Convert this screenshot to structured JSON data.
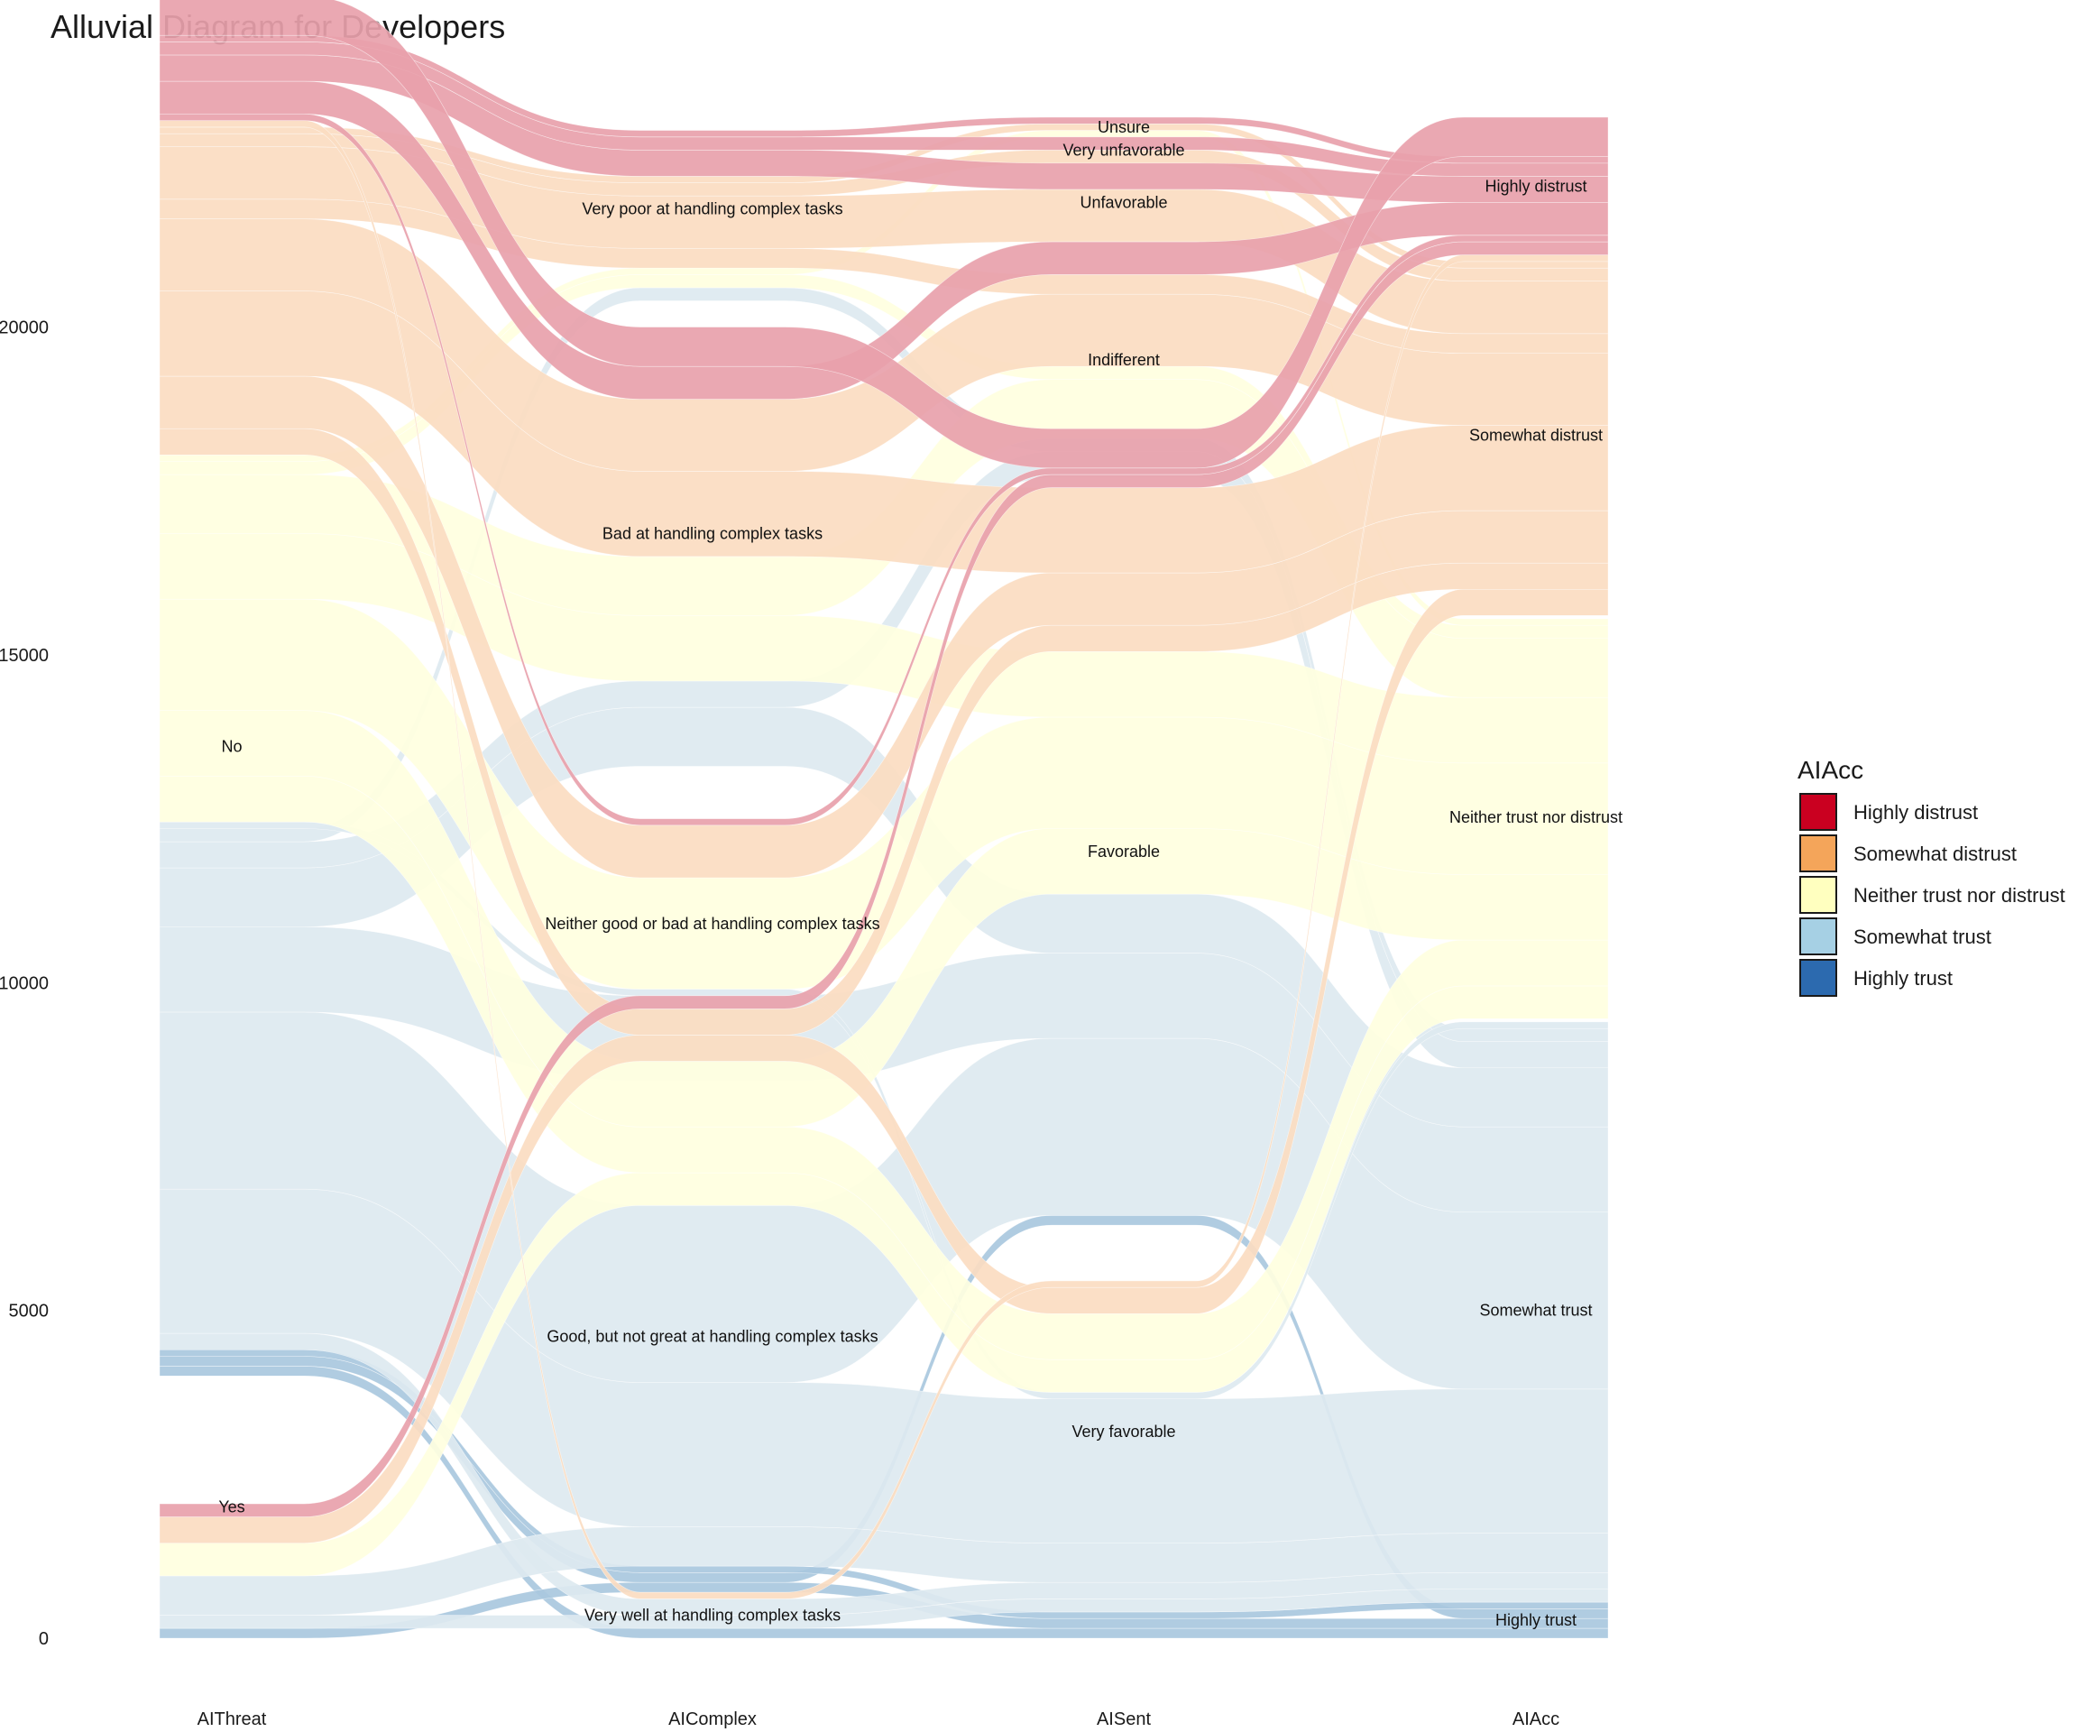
{
  "chart_data": {
    "type": "alluvial",
    "title": "Alluvial Diagram for Developers",
    "axes": [
      "AIThreat",
      "AIComplex",
      "AISent",
      "AIAcc"
    ],
    "y_ticks": [
      0,
      5000,
      10000,
      15000,
      20000
    ],
    "ylim": [
      0,
      23200
    ],
    "grid": false,
    "legend": {
      "title": "AIAcc",
      "placement": "right",
      "items": [
        {
          "label": "Highly distrust",
          "color": "#ca0020"
        },
        {
          "label": "Somewhat distrust",
          "color": "#f4a55a"
        },
        {
          "label": "Neither trust nor distrust",
          "color": "#ffffbf"
        },
        {
          "label": "Somewhat trust",
          "color": "#a6d0e4"
        },
        {
          "label": "Highly trust",
          "color": "#2c6aaf"
        }
      ]
    },
    "strata": [
      {
        "axis": 0,
        "label": "Yes",
        "from": 0,
        "to": 4000
      },
      {
        "axis": 0,
        "label": "No",
        "from": 4000,
        "to": 23200
      },
      {
        "axis": 1,
        "label": "Very well at handling complex tasks",
        "from": 0,
        "to": 700
      },
      {
        "axis": 1,
        "label": "Good, but not great at handling complex tasks",
        "from": 700,
        "to": 8500
      },
      {
        "axis": 1,
        "label": "Neither good or bad at handling complex tasks",
        "from": 8500,
        "to": 13300
      },
      {
        "axis": 1,
        "label": "Bad at handling complex tasks",
        "from": 13300,
        "to": 20400
      },
      {
        "axis": 1,
        "label": "Very poor at handling complex tasks",
        "from": 20400,
        "to": 23200
      },
      {
        "axis": 2,
        "label": "Very favorable",
        "from": 0,
        "to": 6300
      },
      {
        "axis": 2,
        "label": "Favorable",
        "from": 6300,
        "to": 17700
      },
      {
        "axis": 2,
        "label": "Indifferent",
        "from": 17700,
        "to": 21300
      },
      {
        "axis": 2,
        "label": "Unfavorable",
        "from": 21300,
        "to": 22500
      },
      {
        "axis": 2,
        "label": "Very unfavorable",
        "from": 22500,
        "to": 22900
      },
      {
        "axis": 2,
        "label": "Unsure",
        "from": 22900,
        "to": 23200
      },
      {
        "axis": 3,
        "label": "Highly trust",
        "from": 0,
        "to": 550
      },
      {
        "axis": 3,
        "label": "Somewhat trust",
        "from": 550,
        "to": 9450
      },
      {
        "axis": 3,
        "label": "Neither trust nor distrust",
        "from": 9450,
        "to": 15600
      },
      {
        "axis": 3,
        "label": "Somewhat distrust",
        "from": 15600,
        "to": 21100
      },
      {
        "axis": 3,
        "label": "Highly distrust",
        "from": 21100,
        "to": 23200
      }
    ],
    "flow_colors": {
      "Highly distrust": "#e8a1ab",
      "Somewhat distrust": "#fbdcc1",
      "Neither trust nor distrust": "#ffffdf",
      "Somewhat trust": "#dde9f0",
      "Highly trust": "#a9c8de"
    },
    "flows": [
      {
        "acc": "Highly trust",
        "path": [
          "No",
          "Very well at handling complex tasks",
          "Very favorable",
          "Highly trust"
        ],
        "value": 150
      },
      {
        "acc": "Highly trust",
        "path": [
          "Yes",
          "Good, but not great at handling complex tasks",
          "Very favorable",
          "Highly trust"
        ],
        "value": 150
      },
      {
        "acc": "Highly trust",
        "path": [
          "No",
          "Good, but not great at handling complex tasks",
          "Favorable",
          "Highly trust"
        ],
        "value": 150
      },
      {
        "acc": "Highly trust",
        "path": [
          "No",
          "Good, but not great at handling complex tasks",
          "Very favorable",
          "Highly trust"
        ],
        "value": 100
      },
      {
        "acc": "Somewhat trust",
        "path": [
          "Yes",
          "Very well at handling complex tasks",
          "Very favorable",
          "Somewhat trust"
        ],
        "value": 200
      },
      {
        "acc": "Somewhat trust",
        "path": [
          "No",
          "Very well at handling complex tasks",
          "Very favorable",
          "Somewhat trust"
        ],
        "value": 250
      },
      {
        "acc": "Somewhat trust",
        "path": [
          "Yes",
          "Good, but not great at handling complex tasks",
          "Very favorable",
          "Somewhat trust"
        ],
        "value": 600
      },
      {
        "acc": "Somewhat trust",
        "path": [
          "No",
          "Good, but not great at handling complex tasks",
          "Very favorable",
          "Somewhat trust"
        ],
        "value": 2200
      },
      {
        "acc": "Somewhat trust",
        "path": [
          "No",
          "Good, but not great at handling complex tasks",
          "Favorable",
          "Somewhat trust"
        ],
        "value": 2700
      },
      {
        "acc": "Somewhat trust",
        "path": [
          "No",
          "Neither good or bad at handling complex tasks",
          "Favorable",
          "Somewhat trust"
        ],
        "value": 1300
      },
      {
        "acc": "Somewhat trust",
        "path": [
          "No",
          "Bad at handling complex tasks",
          "Favorable",
          "Somewhat trust"
        ],
        "value": 900
      },
      {
        "acc": "Somewhat trust",
        "path": [
          "No",
          "Bad at handling complex tasks",
          "Indifferent",
          "Somewhat trust"
        ],
        "value": 400
      },
      {
        "acc": "Somewhat trust",
        "path": [
          "No",
          "Very poor at handling complex tasks",
          "Indifferent",
          "Somewhat trust"
        ],
        "value": 200
      },
      {
        "acc": "Somewhat trust",
        "path": [
          "No",
          "Neither good or bad at handling complex tasks",
          "Very favorable",
          "Somewhat trust"
        ],
        "value": 100
      },
      {
        "acc": "Neither trust nor distrust",
        "path": [
          "Yes",
          "Good, but not great at handling complex tasks",
          "Very favorable",
          "Neither trust nor distrust"
        ],
        "value": 500
      },
      {
        "acc": "Neither trust nor distrust",
        "path": [
          "No",
          "Good, but not great at handling complex tasks",
          "Very favorable",
          "Neither trust nor distrust"
        ],
        "value": 700
      },
      {
        "acc": "Neither trust nor distrust",
        "path": [
          "No",
          "Good, but not great at handling complex tasks",
          "Favorable",
          "Neither trust nor distrust"
        ],
        "value": 1000
      },
      {
        "acc": "Neither trust nor distrust",
        "path": [
          "No",
          "Neither good or bad at handling complex tasks",
          "Favorable",
          "Neither trust nor distrust"
        ],
        "value": 1700
      },
      {
        "acc": "Neither trust nor distrust",
        "path": [
          "No",
          "Bad at handling complex tasks",
          "Favorable",
          "Neither trust nor distrust"
        ],
        "value": 1000
      },
      {
        "acc": "Neither trust nor distrust",
        "path": [
          "No",
          "Bad at handling complex tasks",
          "Indifferent",
          "Neither trust nor distrust"
        ],
        "value": 900
      },
      {
        "acc": "Neither trust nor distrust",
        "path": [
          "No",
          "Very poor at handling complex tasks",
          "Indifferent",
          "Neither trust nor distrust"
        ],
        "value": 200
      },
      {
        "acc": "Neither trust nor distrust",
        "path": [
          "No",
          "Very poor at handling complex tasks",
          "Unsure",
          "Neither trust nor distrust"
        ],
        "value": 100
      },
      {
        "acc": "Somewhat distrust",
        "path": [
          "Yes",
          "Good, but not great at handling complex tasks",
          "Very favorable",
          "Somewhat distrust"
        ],
        "value": 400
      },
      {
        "acc": "Somewhat distrust",
        "path": [
          "No",
          "Good, but not great at handling complex tasks",
          "Favorable",
          "Somewhat distrust"
        ],
        "value": 400
      },
      {
        "acc": "Somewhat distrust",
        "path": [
          "No",
          "Neither good or bad at handling complex tasks",
          "Favorable",
          "Somewhat distrust"
        ],
        "value": 800
      },
      {
        "acc": "Somewhat distrust",
        "path": [
          "No",
          "Bad at handling complex tasks",
          "Favorable",
          "Somewhat distrust"
        ],
        "value": 1300
      },
      {
        "acc": "Somewhat distrust",
        "path": [
          "No",
          "Bad at handling complex tasks",
          "Indifferent",
          "Somewhat distrust"
        ],
        "value": 1100
      },
      {
        "acc": "Somewhat distrust",
        "path": [
          "No",
          "Very poor at handling complex tasks",
          "Indifferent",
          "Somewhat distrust"
        ],
        "value": 300
      },
      {
        "acc": "Somewhat distrust",
        "path": [
          "No",
          "Very poor at handling complex tasks",
          "Unfavorable",
          "Somewhat distrust"
        ],
        "value": 800
      },
      {
        "acc": "Somewhat distrust",
        "path": [
          "No",
          "Very poor at handling complex tasks",
          "Very unfavorable",
          "Somewhat distrust"
        ],
        "value": 200
      },
      {
        "acc": "Somewhat distrust",
        "path": [
          "No",
          "Very poor at handling complex tasks",
          "Unsure",
          "Somewhat distrust"
        ],
        "value": 100
      },
      {
        "acc": "Somewhat distrust",
        "path": [
          "No",
          "Very well at handling complex tasks",
          "Very favorable",
          "Somewhat distrust"
        ],
        "value": 100
      },
      {
        "acc": "Highly distrust",
        "path": [
          "Yes",
          "Good, but not great at handling complex tasks",
          "Favorable",
          "Highly distrust"
        ],
        "value": 200
      },
      {
        "acc": "Highly distrust",
        "path": [
          "No",
          "Neither good or bad at handling complex tasks",
          "Favorable",
          "Highly distrust"
        ],
        "value": 100
      },
      {
        "acc": "Highly distrust",
        "path": [
          "No",
          "Bad at handling complex tasks",
          "Indifferent",
          "Highly distrust"
        ],
        "value": 500
      },
      {
        "acc": "Highly distrust",
        "path": [
          "No",
          "Very poor at handling complex tasks",
          "Unfavorable",
          "Highly distrust"
        ],
        "value": 400
      },
      {
        "acc": "Highly distrust",
        "path": [
          "No",
          "Very poor at handling complex tasks",
          "Very unfavorable",
          "Highly distrust"
        ],
        "value": 200
      },
      {
        "acc": "Highly distrust",
        "path": [
          "No",
          "Very poor at handling complex tasks",
          "Unsure",
          "Highly distrust"
        ],
        "value": 100
      },
      {
        "acc": "Highly distrust",
        "path": [
          "No",
          "Bad at handling complex tasks",
          "Favorable",
          "Highly distrust"
        ],
        "value": 600
      }
    ]
  }
}
